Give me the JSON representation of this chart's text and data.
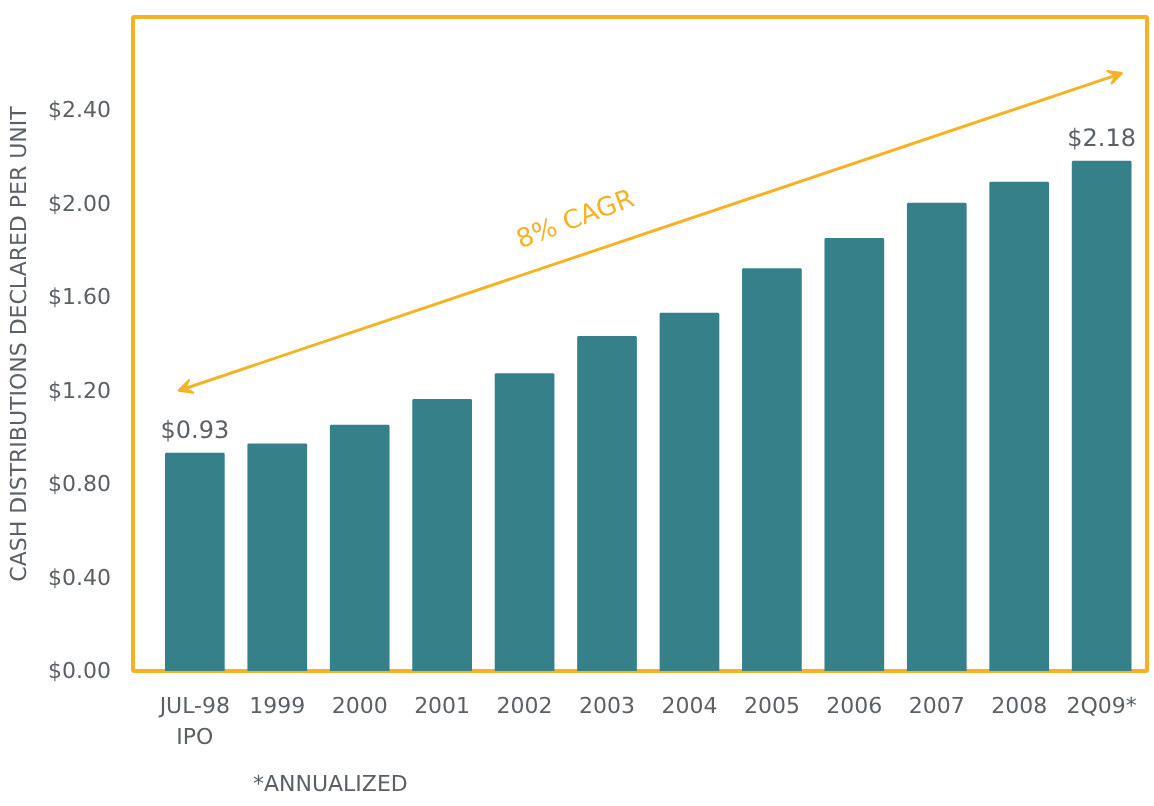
{
  "chart_data": {
    "type": "bar",
    "ylabel": "CASH DISTRIBUTIONS DECLARED PER UNIT",
    "categories": [
      "JUL-98\nIPO",
      "1999",
      "2000",
      "2001",
      "2002",
      "2003",
      "2004",
      "2005",
      "2006",
      "2007",
      "2008",
      "2Q09*"
    ],
    "values": [
      0.93,
      0.97,
      1.05,
      1.16,
      1.27,
      1.43,
      1.53,
      1.72,
      1.85,
      2.0,
      2.09,
      2.18
    ],
    "value_labels": [
      "$0.93",
      null,
      null,
      null,
      null,
      null,
      null,
      null,
      null,
      null,
      null,
      "$2.18"
    ],
    "color": "#36808a",
    "ylim": [
      0,
      2.8
    ],
    "yticks": [
      {
        "value": 0,
        "label": "$0.00"
      },
      {
        "value": 0.4,
        "label": "$0.40"
      },
      {
        "value": 0.8,
        "label": "$0.80"
      },
      {
        "value": 1.2,
        "label": "$1.20"
      },
      {
        "value": 1.6,
        "label": "$1.60"
      },
      {
        "value": 2.0,
        "label": "$2.00"
      },
      {
        "value": 2.4,
        "label": "$2.40"
      }
    ],
    "grid": false,
    "annotations": [
      "8% CAGR",
      "*ANNUALIZED"
    ]
  }
}
